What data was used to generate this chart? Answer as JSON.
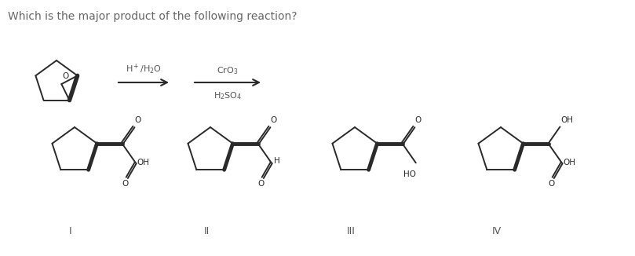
{
  "title": "Which is the major product of the following reaction?",
  "title_color": "#666666",
  "title_fontsize": 10,
  "bg_color": "#ffffff",
  "line_color": "#2a2a2a",
  "text_color": "#555555",
  "lw": 1.4,
  "labels": [
    "I",
    "II",
    "III",
    "IV"
  ],
  "label_fontsize": 9
}
